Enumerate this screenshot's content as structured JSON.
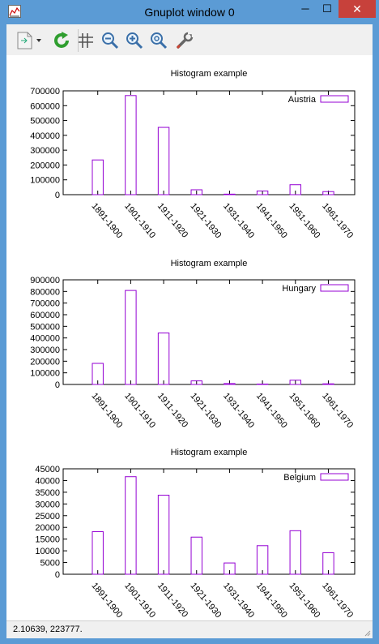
{
  "window": {
    "title": "Gnuplot window 0",
    "controls": {
      "minimize": "─",
      "maximize": "☐",
      "close": "✕"
    }
  },
  "toolbar": {
    "buttons": [
      {
        "name": "copy-print-menu-icon"
      },
      {
        "name": "replot-icon"
      },
      {
        "name": "grid-icon"
      },
      {
        "name": "zoom-previous-icon"
      },
      {
        "name": "zoom-next-icon"
      },
      {
        "name": "unzoom-icon"
      },
      {
        "name": "options-wrench-icon"
      }
    ]
  },
  "status": {
    "text": "2.10639,  223777."
  },
  "colors": {
    "series": "#9400d3",
    "titlebar": "#5b9bd5",
    "close": "#c7413b"
  },
  "chart_data": [
    {
      "type": "bar",
      "title": "Histogram example",
      "categories": [
        "1891-1900",
        "1901-1910",
        "1911-1920",
        "1921-1930",
        "1931-1940",
        "1941-1950",
        "1951-1960",
        "1961-1970"
      ],
      "series": [
        {
          "name": "Austria",
          "values": [
            234081,
            668209,
            453649,
            32868,
            3563,
            24860,
            67106,
            20621
          ]
        }
      ],
      "ylim": [
        0,
        700000
      ],
      "yticks": [
        "0",
        "100000",
        "200000",
        "300000",
        "400000",
        "500000",
        "600000",
        "700000"
      ],
      "legend": "top-right"
    },
    {
      "type": "bar",
      "title": "Histogram example",
      "categories": [
        "1891-1900",
        "1901-1910",
        "1911-1920",
        "1921-1930",
        "1931-1940",
        "1941-1950",
        "1951-1960",
        "1961-1970"
      ],
      "series": [
        {
          "name": "Hungary",
          "values": [
            181288,
            808511,
            442693,
            30680,
            7861,
            3469,
            36637,
            5401
          ]
        }
      ],
      "ylim": [
        0,
        900000
      ],
      "yticks": [
        "0",
        "100000",
        "200000",
        "300000",
        "400000",
        "500000",
        "600000",
        "700000",
        "800000",
        "900000"
      ],
      "legend": "top-right"
    },
    {
      "type": "bar",
      "title": "Histogram example",
      "categories": [
        "1891-1900",
        "1901-1910",
        "1911-1920",
        "1921-1930",
        "1931-1940",
        "1941-1950",
        "1951-1960",
        "1961-1970"
      ],
      "series": [
        {
          "name": "Belgium",
          "values": [
            18167,
            41635,
            33746,
            15846,
            4817,
            12189,
            18575,
            9192
          ]
        }
      ],
      "ylim": [
        0,
        45000
      ],
      "yticks": [
        "0",
        "5000",
        "10000",
        "15000",
        "20000",
        "25000",
        "30000",
        "35000",
        "40000",
        "45000"
      ],
      "legend": "top-right"
    }
  ]
}
